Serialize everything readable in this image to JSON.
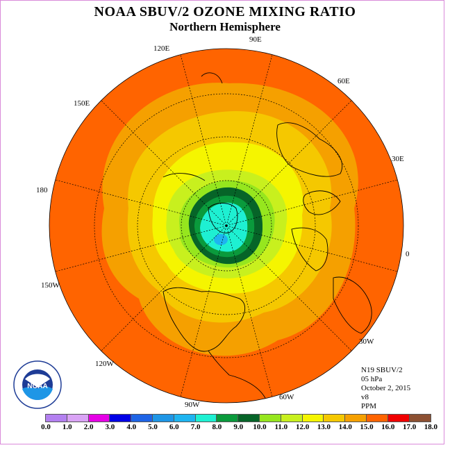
{
  "title": "NOAA SBUV/2 OZONE MIXING RATIO",
  "subtitle": "Northern Hemisphere",
  "longitude_labels": {
    "e90": "90E",
    "e60": "60E",
    "e30": "30E",
    "zero": "0",
    "w30": "30W",
    "w60": "60W",
    "w90": "90W",
    "w120": "120W",
    "w150": "150W",
    "l180": "180",
    "e150": "150E",
    "e120": "120E"
  },
  "info": {
    "satellite": "N19 SBUV/2",
    "level": "05 hPa",
    "date": "October 2, 2015",
    "version": "v8",
    "units": "PPM"
  },
  "logo_text": "NOAA",
  "colorbar": {
    "ticks": [
      "0.0",
      "1.0",
      "2.0",
      "3.0",
      "4.0",
      "5.0",
      "6.0",
      "7.0",
      "8.0",
      "9.0",
      "10.0",
      "11.0",
      "12.0",
      "13.0",
      "14.0",
      "15.0",
      "16.0",
      "17.0",
      "18.0"
    ],
    "colors": [
      "#b380f0",
      "#d9a3f5",
      "#e600e6",
      "#0000e6",
      "#1e64e6",
      "#1e96e6",
      "#1eb4f0",
      "#1ef0d2",
      "#0a9a3c",
      "#066428",
      "#96e61e",
      "#c8f01e",
      "#f5f500",
      "#f5c800",
      "#f5a000",
      "#ff6400",
      "#f00000",
      "#8c5032"
    ]
  },
  "map_colors": {
    "outer": "#ff6400",
    "band15": "#f5a000",
    "band14": "#f5c800",
    "band13": "#f5f500",
    "band12": "#c8f01e",
    "band11": "#96e61e",
    "band9": "#066428",
    "band8": "#0a9a3c",
    "band7": "#1ef0d2",
    "band6": "#1eb4f0",
    "rim": "#f5c800"
  }
}
